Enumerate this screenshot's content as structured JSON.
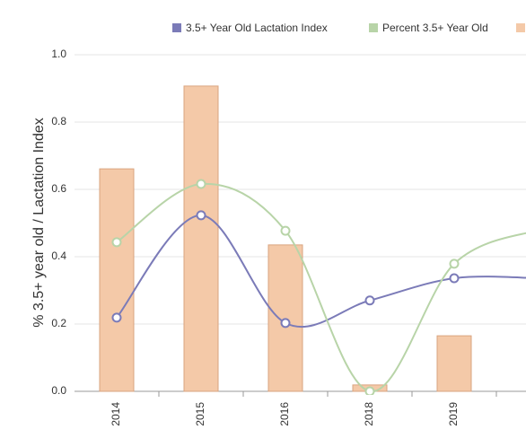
{
  "chart_data": {
    "type": "combo",
    "y_label": "% 3.5+ year old / Lactation Index",
    "categories": [
      "2014",
      "2015",
      "2016",
      "2018",
      "2019",
      null
    ],
    "series": [
      {
        "name": "3.5+ Year Old Lactation Index",
        "type": "line",
        "color": "#7b7bb8",
        "values": [
          0.219,
          0.523,
          0.203,
          0.27,
          0.336,
          0.336
        ]
      },
      {
        "name": "Percent 3.5+ Year Old",
        "type": "line",
        "color": "#b8d4a8",
        "values": [
          0.443,
          0.616,
          0.477,
          0.0,
          0.379,
          0.48
        ]
      },
      {
        "type": "bar",
        "color": "#f4c9a8",
        "values": [
          0.661,
          0.907,
          0.435,
          0.019,
          0.165,
          null
        ]
      }
    ],
    "ylim": [
      0,
      1
    ],
    "yticks": [
      {
        "value": 0,
        "label": "0.0"
      },
      0.2,
      0.4,
      0.6,
      0.8,
      {
        "value": 1,
        "label": "1.0"
      }
    ],
    "grid": true
  }
}
